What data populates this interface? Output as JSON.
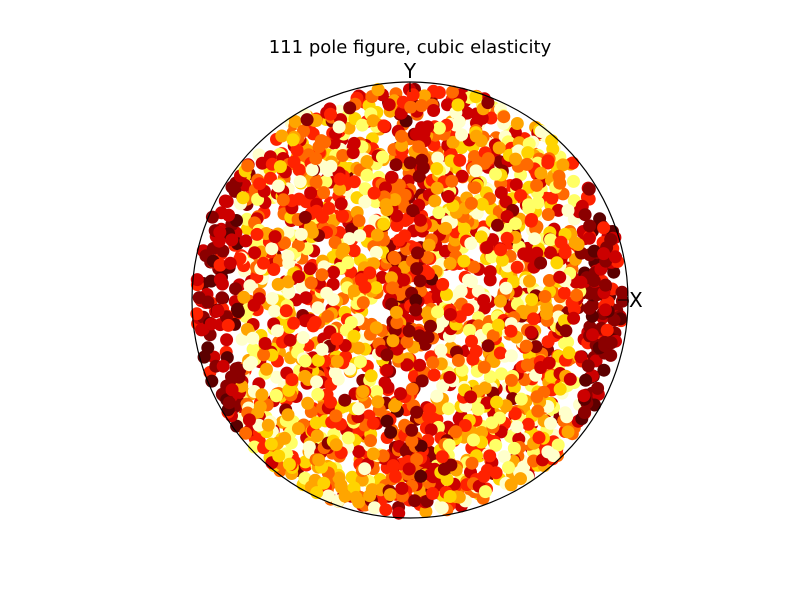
{
  "chart_data": {
    "type": "scatter",
    "title": "111 pole figure, cubic elasticity",
    "projection": "stereographic",
    "axis_labels": {
      "x": "X",
      "y": "Y"
    },
    "xlim": [
      -1,
      1
    ],
    "ylim": [
      -1,
      1
    ],
    "grid": false,
    "legend": "none",
    "colormap": "hot",
    "colormap_stops": [
      "#5c0000",
      "#8b0000",
      "#cc0000",
      "#ff2200",
      "#ff6a00",
      "#ffa500",
      "#ffd400",
      "#ffff66",
      "#ffffcc"
    ],
    "point_count": 2400,
    "value_range": [
      0,
      1
    ],
    "color_distribution_note_x_ticks": [
      "-1",
      "0",
      "1"
    ],
    "features": [
      {
        "name": "bright vertical band",
        "x": 0.0,
        "value": 0.45
      },
      {
        "name": "dark rim left",
        "x": -0.95,
        "value": 0.05
      },
      {
        "name": "dark rim right",
        "x": 0.95,
        "value": 0.05
      }
    ]
  }
}
